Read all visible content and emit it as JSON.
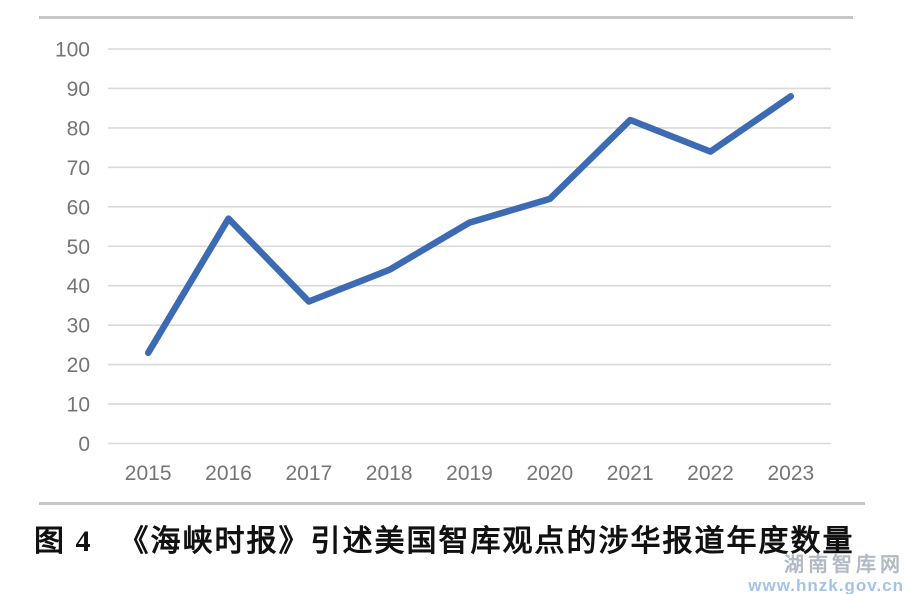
{
  "colors": {
    "line": "#3d6bb3",
    "gridline": "#d9d9d9",
    "rule": "#c6c6c6",
    "axis_text": "#757575",
    "caption_text": "#111111",
    "watermark_name": "#b3bac6",
    "watermark_url": "#a5c3e8"
  },
  "chart_data": {
    "type": "line",
    "categories": [
      "2015",
      "2016",
      "2017",
      "2018",
      "2019",
      "2020",
      "2021",
      "2022",
      "2023"
    ],
    "values": [
      23,
      57,
      36,
      44,
      56,
      62,
      82,
      74,
      88
    ],
    "title": "《海峡时报》引述美国智库观点的涉华报道年度数量",
    "xlabel": "",
    "ylabel": "",
    "ylim": [
      0,
      100
    ],
    "ytick_step": 10,
    "grid": "horizontal",
    "legend": "none"
  },
  "caption": {
    "figure_label": "图 4",
    "title": "《海峡时报》引述美国智库观点的涉华报道年度数量"
  },
  "watermark": {
    "name": "湖南智库网",
    "url": "www.hnzk.gov.cn"
  }
}
